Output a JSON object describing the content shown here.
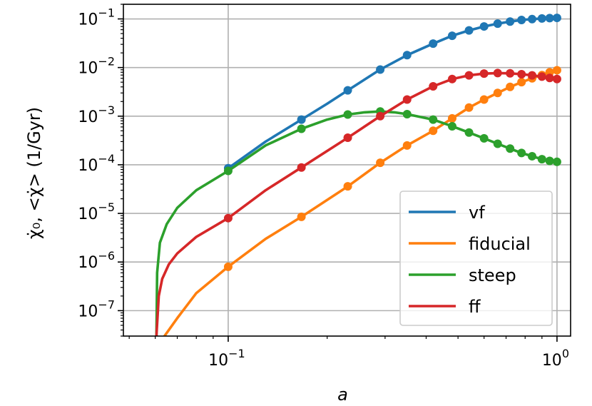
{
  "chart_data": {
    "type": "line",
    "xlabel": "a",
    "ylabel": "χ̇₀, <χ̇> (1/Gyr)",
    "x_scale": "log",
    "y_scale": "log",
    "xlim": [
      0.048,
      1.1
    ],
    "ylim": [
      3e-08,
      0.2
    ],
    "grid": true,
    "legend_position": "lower-right",
    "x_ticks": [
      {
        "value": 0.1,
        "base": "10",
        "exp": "−1"
      },
      {
        "value": 1,
        "base": "10",
        "exp": "0"
      }
    ],
    "y_ticks": [
      {
        "value": 1e-07,
        "base": "10",
        "exp": "−7"
      },
      {
        "value": 1e-06,
        "base": "10",
        "exp": "−6"
      },
      {
        "value": 1e-05,
        "base": "10",
        "exp": "−5"
      },
      {
        "value": 0.0001,
        "base": "10",
        "exp": "−4"
      },
      {
        "value": 0.001,
        "base": "10",
        "exp": "−3"
      },
      {
        "value": 0.01,
        "base": "10",
        "exp": "−2"
      },
      {
        "value": 0.1,
        "base": "10",
        "exp": "−1"
      }
    ],
    "series": [
      {
        "name": "vf",
        "color": "#1f77b4",
        "x": [
          0.1,
          0.13,
          0.167,
          0.2,
          0.231,
          0.29,
          0.35,
          0.42,
          0.48,
          0.54,
          0.6,
          0.66,
          0.72,
          0.78,
          0.84,
          0.9,
          0.95,
          1.0
        ],
        "y": [
          8.5e-05,
          0.0003,
          0.00085,
          0.0018,
          0.0034,
          0.0091,
          0.018,
          0.031,
          0.045,
          0.058,
          0.07,
          0.08,
          0.088,
          0.095,
          0.099,
          0.102,
          0.104,
          0.105
        ],
        "markers_x": [
          0.1,
          0.167,
          0.231,
          0.29,
          0.35,
          0.42,
          0.48,
          0.54,
          0.6,
          0.66,
          0.72,
          0.78,
          0.84,
          0.9,
          0.95,
          1.0
        ],
        "markers_y": [
          8.5e-05,
          0.00085,
          0.0034,
          0.0091,
          0.018,
          0.031,
          0.045,
          0.058,
          0.07,
          0.08,
          0.088,
          0.095,
          0.099,
          0.102,
          0.104,
          0.105
        ]
      },
      {
        "name": "fiducial",
        "color": "#ff7f0e",
        "x": [
          0.064,
          0.07,
          0.08,
          0.1,
          0.13,
          0.167,
          0.231,
          0.29,
          0.35,
          0.42,
          0.48,
          0.54,
          0.6,
          0.66,
          0.72,
          0.78,
          0.84,
          0.9,
          0.95,
          1.0
        ],
        "y": [
          3e-08,
          7e-08,
          2.3e-07,
          8e-07,
          3e-06,
          8.5e-06,
          3.6e-05,
          0.00011,
          0.00025,
          0.0005,
          0.0009,
          0.0015,
          0.0022,
          0.003,
          0.004,
          0.005,
          0.006,
          0.007,
          0.008,
          0.0088
        ],
        "markers_x": [
          0.1,
          0.167,
          0.231,
          0.29,
          0.35,
          0.42,
          0.48,
          0.54,
          0.6,
          0.66,
          0.72,
          0.78,
          0.84,
          0.9,
          0.95,
          1.0
        ],
        "markers_y": [
          8e-07,
          8.5e-06,
          3.6e-05,
          0.00011,
          0.00025,
          0.0005,
          0.0009,
          0.0015,
          0.0022,
          0.003,
          0.004,
          0.005,
          0.006,
          0.007,
          0.008,
          0.0088
        ]
      },
      {
        "name": "steep",
        "color": "#2ca02c",
        "x": [
          0.0605,
          0.0608,
          0.062,
          0.065,
          0.07,
          0.08,
          0.1,
          0.13,
          0.167,
          0.2,
          0.231,
          0.26,
          0.29,
          0.32,
          0.35,
          0.42,
          0.48,
          0.54,
          0.6,
          0.66,
          0.72,
          0.78,
          0.84,
          0.9,
          0.95,
          1.0
        ],
        "y": [
          3e-08,
          6e-07,
          2.5e-06,
          6e-06,
          1.3e-05,
          3e-05,
          7.5e-05,
          0.00025,
          0.00055,
          0.00085,
          0.00108,
          0.0012,
          0.00125,
          0.0012,
          0.0011,
          0.00085,
          0.00062,
          0.00046,
          0.00035,
          0.00027,
          0.000215,
          0.000175,
          0.00015,
          0.00013,
          0.00012,
          0.000115
        ],
        "markers_x": [
          0.1,
          0.167,
          0.231,
          0.29,
          0.35,
          0.42,
          0.48,
          0.54,
          0.6,
          0.66,
          0.72,
          0.78,
          0.84,
          0.9,
          0.95,
          1.0
        ],
        "markers_y": [
          7.5e-05,
          0.00055,
          0.00108,
          0.00125,
          0.0011,
          0.00085,
          0.00062,
          0.00046,
          0.00035,
          0.00027,
          0.000215,
          0.000175,
          0.00015,
          0.00013,
          0.00012,
          0.000115
        ]
      },
      {
        "name": "ff",
        "color": "#d62728",
        "x": [
          0.0605,
          0.0615,
          0.063,
          0.066,
          0.07,
          0.08,
          0.1,
          0.13,
          0.167,
          0.231,
          0.29,
          0.35,
          0.42,
          0.48,
          0.54,
          0.6,
          0.66,
          0.72,
          0.78,
          0.84,
          0.9,
          0.95,
          1.0
        ],
        "y": [
          3e-08,
          2e-07,
          4.5e-07,
          9e-07,
          1.5e-06,
          3.3e-06,
          8e-06,
          3e-05,
          8.8e-05,
          0.00036,
          0.001,
          0.0022,
          0.0041,
          0.0058,
          0.0069,
          0.0075,
          0.0077,
          0.0076,
          0.0073,
          0.0069,
          0.0065,
          0.0061,
          0.0058
        ],
        "markers_x": [
          0.1,
          0.167,
          0.231,
          0.29,
          0.35,
          0.42,
          0.48,
          0.54,
          0.6,
          0.66,
          0.72,
          0.78,
          0.84,
          0.9,
          0.95,
          1.0
        ],
        "markers_y": [
          8e-06,
          8.8e-05,
          0.00036,
          0.001,
          0.0022,
          0.0041,
          0.0058,
          0.0069,
          0.0075,
          0.0077,
          0.0076,
          0.0073,
          0.0069,
          0.0065,
          0.0061,
          0.0058
        ]
      }
    ]
  }
}
